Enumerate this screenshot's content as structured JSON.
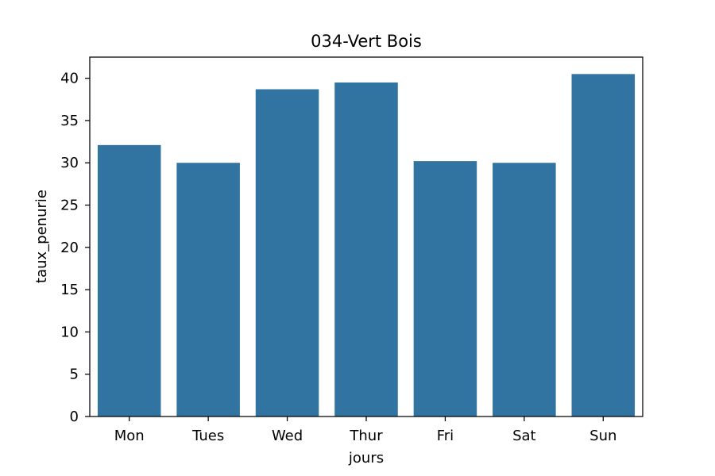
{
  "chart_data": {
    "type": "bar",
    "title": "034-Vert Bois",
    "xlabel": "jours",
    "ylabel": "taux_penurie",
    "categories": [
      "Mon",
      "Tues",
      "Wed",
      "Thur",
      "Fri",
      "Sat",
      "Sun"
    ],
    "values": [
      32.1,
      30.0,
      38.7,
      39.5,
      30.2,
      30.0,
      40.5
    ],
    "ylim": [
      0,
      42.5
    ],
    "yticks": [
      0,
      5,
      10,
      15,
      20,
      25,
      30,
      35,
      40
    ],
    "bar_color": "#3274a1",
    "grid": false,
    "legend": "none"
  }
}
